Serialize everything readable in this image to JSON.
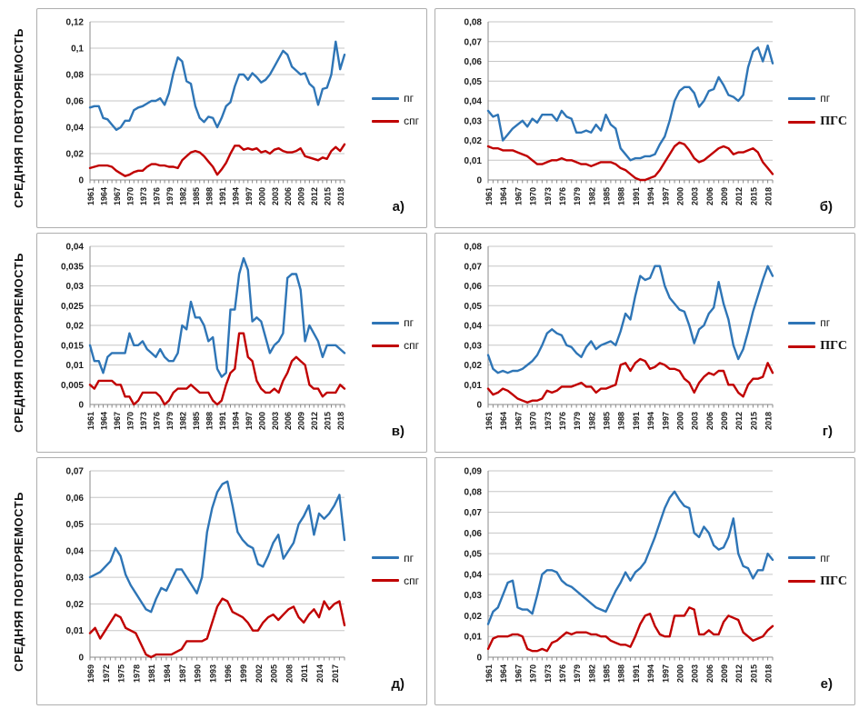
{
  "shared": {
    "y_axis_title": "СРЕДНЯЯ ПОВТОРЯЕМОСТЬ",
    "colors": {
      "pg_blue": "#2E75B6",
      "red_series": "#C00000",
      "gridline": "#c6c6c6",
      "axis": "#8a8a8a"
    }
  },
  "chart_data": [
    {
      "type": "line",
      "panel_label": "а)",
      "x_start": 1961,
      "x_end": 2019,
      "x_label_step": 3,
      "x_tick_labels": [
        "1961",
        "1964",
        "1967",
        "1970",
        "1973",
        "1976",
        "1979",
        "1982",
        "1985",
        "1988",
        "1991",
        "1994",
        "1997",
        "2000",
        "2003",
        "2006",
        "2009",
        "2012",
        "2015",
        "2018"
      ],
      "ylim": [
        0,
        0.12
      ],
      "ystep": 0.02,
      "grid": true,
      "legend_position": "right",
      "series": [
        {
          "name": "пг",
          "color": "#2E75B6",
          "values": [
            0.055,
            0.056,
            0.056,
            0.047,
            0.046,
            0.042,
            0.038,
            0.04,
            0.045,
            0.045,
            0.053,
            0.055,
            0.056,
            0.058,
            0.06,
            0.06,
            0.062,
            0.057,
            0.066,
            0.081,
            0.093,
            0.09,
            0.075,
            0.073,
            0.056,
            0.047,
            0.044,
            0.048,
            0.047,
            0.04,
            0.047,
            0.056,
            0.059,
            0.071,
            0.08,
            0.08,
            0.076,
            0.081,
            0.078,
            0.074,
            0.076,
            0.08,
            0.086,
            0.092,
            0.098,
            0.095,
            0.086,
            0.083,
            0.08,
            0.081,
            0.073,
            0.07,
            0.057,
            0.069,
            0.07,
            0.08,
            0.105,
            0.084,
            0.095
          ]
        },
        {
          "name": "спг",
          "color": "#C00000",
          "values": [
            0.009,
            0.01,
            0.011,
            0.011,
            0.011,
            0.01,
            0.007,
            0.005,
            0.003,
            0.004,
            0.006,
            0.007,
            0.007,
            0.01,
            0.012,
            0.012,
            0.011,
            0.011,
            0.01,
            0.01,
            0.009,
            0.015,
            0.018,
            0.021,
            0.022,
            0.021,
            0.018,
            0.014,
            0.01,
            0.004,
            0.008,
            0.013,
            0.02,
            0.026,
            0.026,
            0.023,
            0.024,
            0.023,
            0.024,
            0.021,
            0.022,
            0.02,
            0.023,
            0.024,
            0.022,
            0.021,
            0.021,
            0.022,
            0.024,
            0.018,
            0.017,
            0.016,
            0.015,
            0.017,
            0.016,
            0.022,
            0.025,
            0.022,
            0.027
          ]
        }
      ]
    },
    {
      "type": "line",
      "panel_label": "б)",
      "x_start": 1961,
      "x_end": 2019,
      "x_label_step": 3,
      "x_tick_labels": [
        "1961",
        "1964",
        "1967",
        "1970",
        "1973",
        "1976",
        "1979",
        "1982",
        "1985",
        "1988",
        "1991",
        "1994",
        "1997",
        "2000",
        "2003",
        "2006",
        "2009",
        "2012",
        "2015",
        "2018"
      ],
      "ylim": [
        0,
        0.08
      ],
      "ystep": 0.01,
      "grid": true,
      "legend_position": "right",
      "series": [
        {
          "name": "пг",
          "color": "#2E75B6",
          "values": [
            0.035,
            0.032,
            0.033,
            0.02,
            0.023,
            0.026,
            0.028,
            0.03,
            0.027,
            0.031,
            0.029,
            0.033,
            0.033,
            0.033,
            0.03,
            0.035,
            0.032,
            0.031,
            0.024,
            0.024,
            0.025,
            0.024,
            0.028,
            0.025,
            0.033,
            0.028,
            0.026,
            0.016,
            0.013,
            0.01,
            0.011,
            0.011,
            0.012,
            0.012,
            0.013,
            0.018,
            0.022,
            0.03,
            0.04,
            0.045,
            0.047,
            0.047,
            0.044,
            0.037,
            0.04,
            0.045,
            0.046,
            0.052,
            0.048,
            0.043,
            0.042,
            0.04,
            0.043,
            0.057,
            0.065,
            0.067,
            0.06,
            0.068,
            0.059
          ]
        },
        {
          "name": "ПГС",
          "color": "#C00000",
          "values": [
            0.017,
            0.016,
            0.016,
            0.015,
            0.015,
            0.015,
            0.014,
            0.013,
            0.012,
            0.01,
            0.008,
            0.008,
            0.009,
            0.01,
            0.01,
            0.011,
            0.01,
            0.01,
            0.009,
            0.008,
            0.008,
            0.007,
            0.008,
            0.009,
            0.009,
            0.009,
            0.008,
            0.006,
            0.005,
            0.003,
            0.001,
            0.0,
            0.0,
            0.001,
            0.002,
            0.005,
            0.009,
            0.013,
            0.017,
            0.019,
            0.018,
            0.015,
            0.011,
            0.009,
            0.01,
            0.012,
            0.014,
            0.016,
            0.017,
            0.016,
            0.013,
            0.014,
            0.014,
            0.015,
            0.016,
            0.014,
            0.009,
            0.006,
            0.003
          ]
        }
      ]
    },
    {
      "type": "line",
      "panel_label": "в)",
      "x_start": 1961,
      "x_end": 2019,
      "x_label_step": 3,
      "x_tick_labels": [
        "1961",
        "1964",
        "1967",
        "1970",
        "1973",
        "1976",
        "1979",
        "1982",
        "1985",
        "1988",
        "1991",
        "1994",
        "1997",
        "2000",
        "2003",
        "2006",
        "2009",
        "2012",
        "2015",
        "2018"
      ],
      "ylim": [
        0,
        0.04
      ],
      "ystep": 0.005,
      "grid": true,
      "legend_position": "right",
      "series": [
        {
          "name": "пг",
          "color": "#2E75B6",
          "values": [
            0.015,
            0.011,
            0.011,
            0.008,
            0.012,
            0.013,
            0.013,
            0.013,
            0.013,
            0.018,
            0.015,
            0.015,
            0.016,
            0.014,
            0.013,
            0.012,
            0.014,
            0.012,
            0.011,
            0.011,
            0.013,
            0.02,
            0.019,
            0.026,
            0.022,
            0.022,
            0.02,
            0.016,
            0.017,
            0.009,
            0.007,
            0.008,
            0.024,
            0.024,
            0.033,
            0.037,
            0.034,
            0.021,
            0.022,
            0.021,
            0.017,
            0.013,
            0.015,
            0.016,
            0.018,
            0.032,
            0.033,
            0.033,
            0.029,
            0.016,
            0.02,
            0.018,
            0.016,
            0.012,
            0.015,
            0.015,
            0.015,
            0.014,
            0.013
          ]
        },
        {
          "name": "спг",
          "color": "#C00000",
          "values": [
            0.005,
            0.004,
            0.006,
            0.006,
            0.006,
            0.006,
            0.005,
            0.005,
            0.002,
            0.002,
            0.0,
            0.001,
            0.003,
            0.003,
            0.003,
            0.003,
            0.002,
            0.0,
            0.001,
            0.003,
            0.004,
            0.004,
            0.004,
            0.005,
            0.004,
            0.003,
            0.003,
            0.003,
            0.001,
            0.0,
            0.001,
            0.005,
            0.008,
            0.009,
            0.018,
            0.018,
            0.012,
            0.011,
            0.006,
            0.004,
            0.003,
            0.003,
            0.004,
            0.003,
            0.006,
            0.008,
            0.011,
            0.012,
            0.011,
            0.01,
            0.005,
            0.004,
            0.004,
            0.002,
            0.003,
            0.003,
            0.003,
            0.005,
            0.004
          ]
        }
      ]
    },
    {
      "type": "line",
      "panel_label": "г)",
      "x_start": 1961,
      "x_end": 2019,
      "x_label_step": 3,
      "x_tick_labels": [
        "1961",
        "1964",
        "1967",
        "1970",
        "1973",
        "1976",
        "1979",
        "1982",
        "1985",
        "1988",
        "1991",
        "1994",
        "1997",
        "2000",
        "2003",
        "2006",
        "2009",
        "2012",
        "2015",
        "2018"
      ],
      "ylim": [
        0,
        0.08
      ],
      "ystep": 0.01,
      "grid": true,
      "legend_position": "right",
      "series": [
        {
          "name": "пг",
          "color": "#2E75B6",
          "values": [
            0.025,
            0.018,
            0.016,
            0.017,
            0.016,
            0.017,
            0.017,
            0.018,
            0.02,
            0.022,
            0.025,
            0.03,
            0.036,
            0.038,
            0.036,
            0.035,
            0.03,
            0.029,
            0.026,
            0.024,
            0.029,
            0.032,
            0.028,
            0.03,
            0.031,
            0.032,
            0.03,
            0.037,
            0.046,
            0.043,
            0.055,
            0.065,
            0.063,
            0.064,
            0.07,
            0.07,
            0.06,
            0.054,
            0.051,
            0.048,
            0.047,
            0.04,
            0.031,
            0.038,
            0.04,
            0.046,
            0.049,
            0.062,
            0.051,
            0.043,
            0.03,
            0.023,
            0.028,
            0.037,
            0.047,
            0.055,
            0.063,
            0.07,
            0.065
          ]
        },
        {
          "name": "ПГС",
          "color": "#C00000",
          "values": [
            0.008,
            0.005,
            0.006,
            0.008,
            0.007,
            0.005,
            0.003,
            0.002,
            0.001,
            0.002,
            0.002,
            0.003,
            0.007,
            0.006,
            0.007,
            0.009,
            0.009,
            0.009,
            0.01,
            0.011,
            0.009,
            0.009,
            0.006,
            0.008,
            0.008,
            0.009,
            0.01,
            0.02,
            0.021,
            0.017,
            0.021,
            0.023,
            0.022,
            0.018,
            0.019,
            0.021,
            0.02,
            0.018,
            0.018,
            0.017,
            0.013,
            0.011,
            0.006,
            0.011,
            0.014,
            0.016,
            0.015,
            0.017,
            0.017,
            0.01,
            0.01,
            0.006,
            0.004,
            0.01,
            0.013,
            0.013,
            0.014,
            0.021,
            0.016
          ]
        }
      ]
    },
    {
      "type": "line",
      "panel_label": "д)",
      "x_start": 1969,
      "x_end": 2019,
      "x_label_step": 3,
      "x_tick_labels": [
        "1969",
        "1972",
        "1975",
        "1978",
        "1981",
        "1984",
        "1987",
        "1990",
        "1993",
        "1996",
        "1999",
        "2002",
        "2005",
        "2008",
        "2011",
        "2014",
        "2017"
      ],
      "ylim": [
        0,
        0.07
      ],
      "ystep": 0.01,
      "grid": true,
      "legend_position": "right",
      "series": [
        {
          "name": "пг",
          "color": "#2E75B6",
          "values": [
            0.03,
            0.031,
            0.032,
            0.034,
            0.036,
            0.041,
            0.038,
            0.031,
            0.027,
            0.024,
            0.021,
            0.018,
            0.017,
            0.022,
            0.026,
            0.025,
            0.029,
            0.033,
            0.033,
            0.03,
            0.027,
            0.024,
            0.03,
            0.047,
            0.056,
            0.062,
            0.065,
            0.066,
            0.057,
            0.047,
            0.044,
            0.042,
            0.041,
            0.035,
            0.034,
            0.038,
            0.043,
            0.046,
            0.037,
            0.04,
            0.043,
            0.05,
            0.053,
            0.057,
            0.046,
            0.054,
            0.052,
            0.054,
            0.057,
            0.061,
            0.044
          ]
        },
        {
          "name": "спг",
          "color": "#C00000",
          "values": [
            0.009,
            0.011,
            0.007,
            0.01,
            0.013,
            0.016,
            0.015,
            0.011,
            0.01,
            0.009,
            0.005,
            0.001,
            0.0,
            0.001,
            0.001,
            0.001,
            0.001,
            0.002,
            0.003,
            0.006,
            0.006,
            0.006,
            0.006,
            0.007,
            0.013,
            0.019,
            0.022,
            0.021,
            0.017,
            0.016,
            0.015,
            0.013,
            0.01,
            0.01,
            0.013,
            0.015,
            0.016,
            0.014,
            0.016,
            0.018,
            0.019,
            0.015,
            0.013,
            0.016,
            0.018,
            0.015,
            0.021,
            0.018,
            0.02,
            0.021,
            0.012
          ]
        }
      ]
    },
    {
      "type": "line",
      "panel_label": "е)",
      "x_start": 1961,
      "x_end": 2019,
      "x_label_step": 3,
      "x_tick_labels": [
        "1961",
        "1964",
        "1967",
        "1970",
        "1973",
        "1976",
        "1979",
        "1982",
        "1985",
        "1988",
        "1991",
        "1994",
        "1997",
        "2000",
        "2003",
        "2006",
        "2009",
        "2012",
        "2015",
        "2018"
      ],
      "ylim": [
        0,
        0.09
      ],
      "ystep": 0.01,
      "grid": true,
      "legend_position": "right",
      "series": [
        {
          "name": "пг",
          "color": "#2E75B6",
          "values": [
            0.016,
            0.022,
            0.024,
            0.03,
            0.036,
            0.037,
            0.024,
            0.023,
            0.023,
            0.021,
            0.03,
            0.04,
            0.042,
            0.042,
            0.041,
            0.037,
            0.035,
            0.034,
            0.032,
            0.03,
            0.028,
            0.026,
            0.024,
            0.023,
            0.022,
            0.027,
            0.032,
            0.036,
            0.041,
            0.037,
            0.041,
            0.043,
            0.046,
            0.052,
            0.058,
            0.065,
            0.072,
            0.077,
            0.08,
            0.076,
            0.073,
            0.072,
            0.06,
            0.058,
            0.063,
            0.06,
            0.054,
            0.052,
            0.053,
            0.058,
            0.067,
            0.05,
            0.044,
            0.043,
            0.038,
            0.042,
            0.042,
            0.05,
            0.047
          ]
        },
        {
          "name": "ПГС",
          "color": "#C00000",
          "values": [
            0.004,
            0.009,
            0.01,
            0.01,
            0.01,
            0.011,
            0.011,
            0.01,
            0.004,
            0.003,
            0.003,
            0.004,
            0.003,
            0.007,
            0.008,
            0.01,
            0.012,
            0.011,
            0.012,
            0.012,
            0.012,
            0.011,
            0.011,
            0.01,
            0.01,
            0.008,
            0.007,
            0.006,
            0.006,
            0.005,
            0.01,
            0.016,
            0.02,
            0.021,
            0.015,
            0.011,
            0.01,
            0.01,
            0.02,
            0.02,
            0.02,
            0.024,
            0.023,
            0.011,
            0.011,
            0.013,
            0.011,
            0.011,
            0.017,
            0.02,
            0.019,
            0.018,
            0.012,
            0.01,
            0.008,
            0.009,
            0.01,
            0.013,
            0.015
          ]
        }
      ]
    }
  ]
}
